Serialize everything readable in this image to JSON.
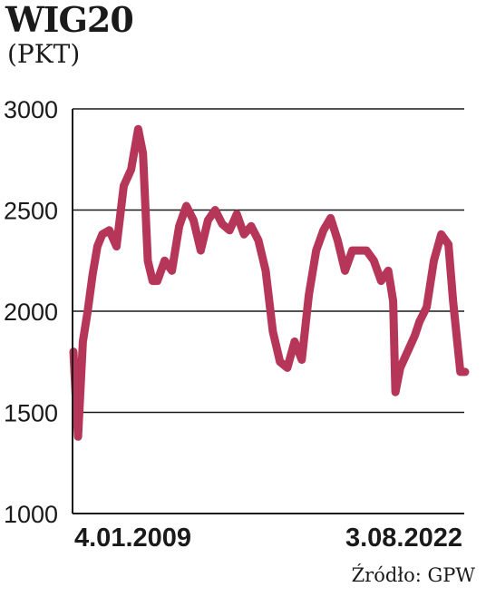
{
  "chart_data": {
    "type": "line",
    "title": "WIG20",
    "subtitle": "(PKT)",
    "source": "Źródło: GPW",
    "ylim": [
      1000,
      3000
    ],
    "yticks": [
      3000,
      2500,
      2000,
      1500,
      1000
    ],
    "x_range": [
      "2009-01-04",
      "2022-08-03"
    ],
    "x_labels": [
      "4.01.2009",
      "3.08.2022"
    ],
    "grid": true,
    "line_color": "#b53658",
    "series": [
      {
        "x": [
          "2009-01",
          "2009-02",
          "2009-03",
          "2009-05",
          "2009-07",
          "2009-09",
          "2009-11",
          "2010-01",
          "2010-04",
          "2010-07",
          "2010-10",
          "2011-01",
          "2011-04",
          "2011-06",
          "2011-08",
          "2011-10",
          "2011-12",
          "2012-03",
          "2012-06",
          "2012-09",
          "2012-12",
          "2013-03",
          "2013-06",
          "2013-09",
          "2013-12",
          "2014-03",
          "2014-06",
          "2014-09",
          "2014-12",
          "2015-03",
          "2015-06",
          "2015-09",
          "2015-12",
          "2016-03",
          "2016-06",
          "2016-09",
          "2016-12",
          "2017-03",
          "2017-06",
          "2017-09",
          "2017-12",
          "2018-03",
          "2018-06",
          "2018-09",
          "2018-12",
          "2019-03",
          "2019-06",
          "2019-09",
          "2019-12",
          "2020-02",
          "2020-03",
          "2020-05",
          "2020-08",
          "2020-11",
          "2021-01",
          "2021-04",
          "2021-07",
          "2021-10",
          "2022-01",
          "2022-03",
          "2022-06",
          "2022-08"
        ],
        "y": [
          1800,
          1560,
          1380,
          1850,
          2000,
          2180,
          2320,
          2380,
          2400,
          2320,
          2620,
          2700,
          2900,
          2780,
          2250,
          2150,
          2150,
          2250,
          2200,
          2420,
          2520,
          2450,
          2300,
          2450,
          2500,
          2430,
          2400,
          2480,
          2380,
          2420,
          2350,
          2200,
          1900,
          1750,
          1720,
          1850,
          1760,
          2080,
          2300,
          2400,
          2460,
          2350,
          2200,
          2300,
          2300,
          2300,
          2250,
          2150,
          2200,
          2050,
          1600,
          1720,
          1800,
          1880,
          1950,
          2020,
          2250,
          2380,
          2330,
          2050,
          1700,
          1700
        ]
      }
    ]
  }
}
